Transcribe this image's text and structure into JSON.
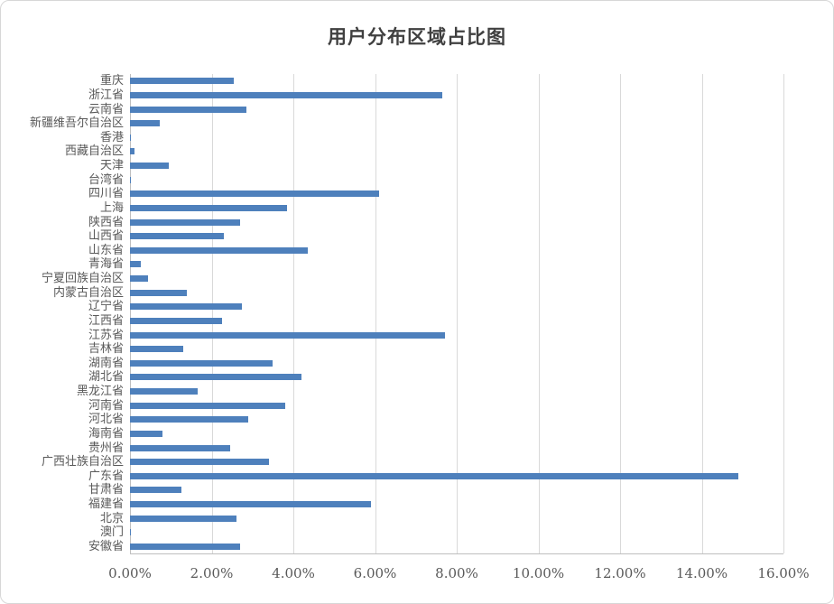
{
  "chart_data": {
    "type": "bar",
    "orientation": "horizontal",
    "title": "用户分布区域占比图",
    "categories": [
      "重庆",
      "浙江省",
      "云南省",
      "新疆维吾尔自治区",
      "香港",
      "西藏自治区",
      "天津",
      "台湾省",
      "四川省",
      "上海",
      "陕西省",
      "山西省",
      "山东省",
      "青海省",
      "宁夏回族自治区",
      "内蒙古自治区",
      "辽宁省",
      "江西省",
      "江苏省",
      "吉林省",
      "湖南省",
      "湖北省",
      "黑龙江省",
      "河南省",
      "河北省",
      "海南省",
      "贵州省",
      "广西壮族自治区",
      "广东省",
      "甘肃省",
      "福建省",
      "北京",
      "澳门",
      "安徽省"
    ],
    "values": [
      2.55,
      7.65,
      2.85,
      0.72,
      0.03,
      0.1,
      0.95,
      0.02,
      6.1,
      3.85,
      2.7,
      2.3,
      4.35,
      0.26,
      0.45,
      1.4,
      2.75,
      2.25,
      7.72,
      1.3,
      3.5,
      4.2,
      1.65,
      3.8,
      2.9,
      0.8,
      2.45,
      3.4,
      14.9,
      1.25,
      5.9,
      2.6,
      0.02,
      2.7
    ],
    "value_unit": "%",
    "xlabel": "",
    "ylabel": "",
    "xlim": [
      0,
      16
    ],
    "x_ticks": [
      "0.00%",
      "2.00%",
      "4.00%",
      "6.00%",
      "8.00%",
      "10.00%",
      "12.00%",
      "14.00%",
      "16.00%"
    ],
    "grid": true,
    "legend": false,
    "colors": {
      "bar": "#4e80bc",
      "gridline": "#d9d9d9",
      "axis_line": "#bfbfbf",
      "title_text": "#404040",
      "label_text": "#595959"
    }
  }
}
